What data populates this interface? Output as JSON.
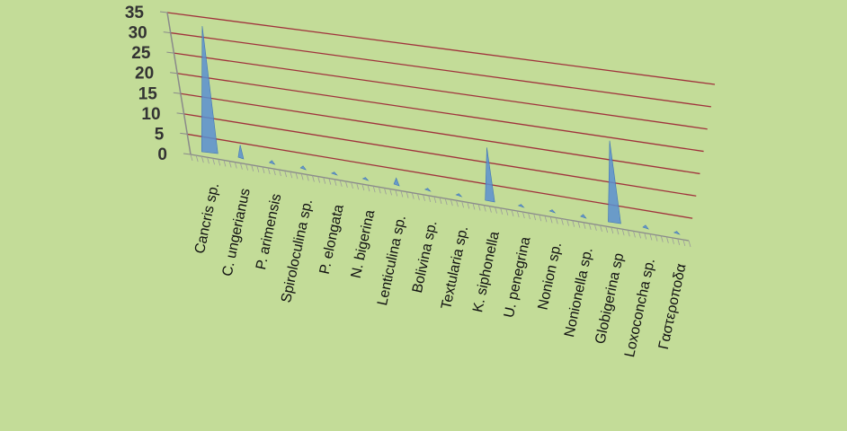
{
  "chart_data": {
    "type": "area",
    "projection": "3d-perspective",
    "title": "",
    "xlabel": "",
    "ylabel": "",
    "ylim": [
      0,
      35
    ],
    "yticks": [
      0,
      5,
      10,
      15,
      20,
      25,
      30,
      35
    ],
    "grid": true,
    "legend": "none",
    "colors": {
      "background": "#c3dc98",
      "gridline": "#a0323c",
      "series": "#5a8fd0",
      "axis": "#8a8a8a"
    },
    "categories": [
      "Cancris sp.",
      "C. ungerianus",
      "P. arimensis",
      "Spiroloculina sp.",
      "P. elongata",
      "N. bigerina",
      "Lenticulina sp.",
      "Bolivina sp.",
      "Textularia sp.",
      "K. siphonella",
      "U. penegrina",
      "Nonion sp.",
      "Nonionella sp.",
      "Globigerina sp",
      "Loxoconcha sp.",
      "Γαστεροποδα"
    ],
    "series": [
      {
        "values": [
          31,
          3,
          0.5,
          0.5,
          0.3,
          0.3,
          1.5,
          0.3,
          0.3,
          13,
          0.3,
          0.3,
          0.5,
          20,
          0.5,
          0.3
        ]
      }
    ]
  }
}
